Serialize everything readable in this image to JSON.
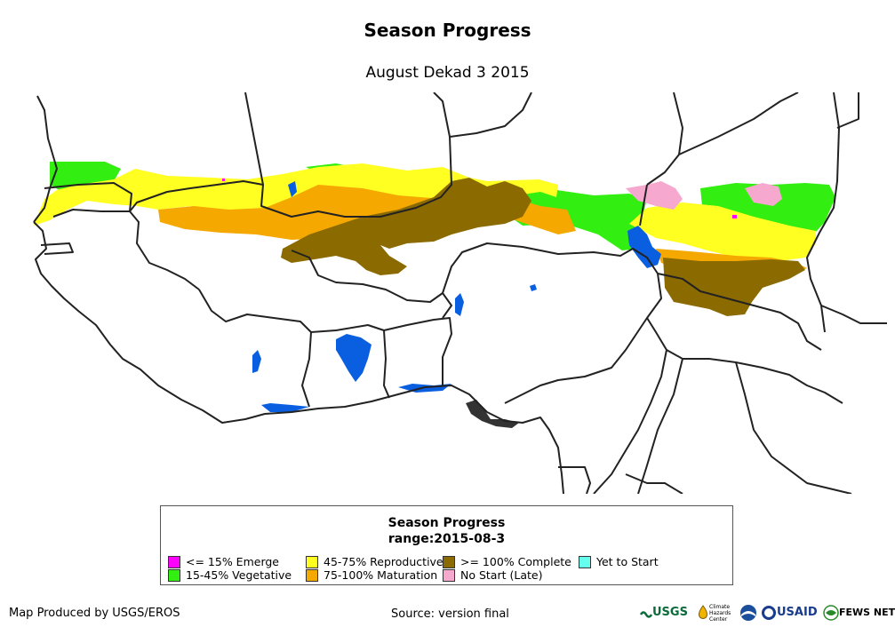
{
  "title": "Season Progress",
  "subtitle": "August Dekad 3 2015",
  "legend": {
    "title": "Season Progress",
    "range": "range:2015-08-3",
    "items": [
      {
        "label": "<= 15% Emerge",
        "color": "#ff00ff"
      },
      {
        "label": "15-45% Vegetative",
        "color": "#33ee11"
      },
      {
        "label": "45-75% Reproductive",
        "color": "#ffff22"
      },
      {
        "label": "75-100% Maturation",
        "color": "#f5a800"
      },
      {
        "label": ">= 100% Complete",
        "color": "#8b6b00"
      },
      {
        "label": "No Start (Late)",
        "color": "#f7a8cf"
      },
      {
        "label": "Yet to Start",
        "color": "#66ffee"
      }
    ]
  },
  "colors": {
    "water": "#0a5fe0",
    "border": "#222222"
  },
  "footer": {
    "produced_by": "Map Produced by USGS/EROS",
    "source": "Source: version final"
  },
  "logos": {
    "usgs": "USGS",
    "chc": "Climate Hazards Center",
    "usaid": "USAID",
    "fewsnet": "FEWS NET"
  }
}
